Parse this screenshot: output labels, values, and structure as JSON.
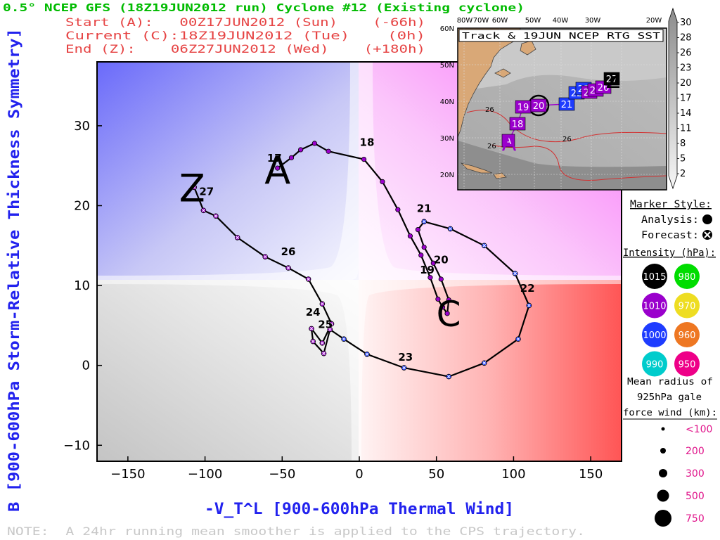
{
  "header": {
    "title": "0.5° NCEP GFS (18Z19JUN2012 run) Cyclone #12 (Existing cyclone)",
    "start_line": "Start (A):   00Z17JUN2012 (Sun)    (-66h)",
    "current_line": "Current (C):18Z19JUN2012 (Tue)    (0h)",
    "end_line": "End (Z):    06Z27JUN2012 (Wed)    (+180h)"
  },
  "footer": {
    "note": "NOTE:  A 24hr running mean smoother is applied to the CPS trajectory."
  },
  "inset": {
    "title": "Track & 19JUN NCEP RTG SST",
    "lon_labels": [
      "80W",
      "70W",
      "60W",
      "50W",
      "40W",
      "30W",
      "20W"
    ],
    "lat_labels": [
      "60N",
      "50N",
      "40N",
      "30N",
      "20N"
    ],
    "sst_contour_labels": [
      "26",
      "26",
      "26"
    ],
    "colorbar_labels": [
      "30",
      "28",
      "26",
      "23",
      "20",
      "17",
      "14",
      "11",
      "8",
      "5",
      "2"
    ],
    "track_markers": [
      {
        "label": "A",
        "color": "#9a00cc"
      },
      {
        "label": "18",
        "color": "#9a00cc"
      },
      {
        "label": "19",
        "color": "#9a00cc"
      },
      {
        "label": "20",
        "color": "#9a00cc"
      },
      {
        "label": "21",
        "color": "#1e3cff"
      },
      {
        "label": "22",
        "color": "#1e3cff"
      },
      {
        "label": "23",
        "color": "#1e3cff"
      },
      {
        "label": "24",
        "color": "#9a00cc"
      },
      {
        "label": "25",
        "color": "#9a00cc"
      },
      {
        "label": "26",
        "color": "#9a00cc"
      },
      {
        "label": "27",
        "color": "#000000"
      }
    ]
  },
  "legend": {
    "marker_style_title": "Marker Style:",
    "analysis_label": "Analysis:",
    "forecast_label": "Forecast:",
    "intensity_title": "Intensity (hPa):",
    "intensity_items": [
      {
        "label": "1015",
        "color": "#000000"
      },
      {
        "label": "980",
        "color": "#00dd00"
      },
      {
        "label": "1010",
        "color": "#9a00cc"
      },
      {
        "label": "970",
        "color": "#eedd22"
      },
      {
        "label": "1000",
        "color": "#1e3cff"
      },
      {
        "label": "960",
        "color": "#ee7722"
      },
      {
        "label": "990",
        "color": "#00cccc"
      },
      {
        "label": "950",
        "color": "#ee0088"
      }
    ],
    "radius_title_1": "Mean radius of",
    "radius_title_2": "925hPa gale",
    "radius_title_3": "force wind (km):",
    "radius_items": [
      "<100",
      "200",
      "300",
      "500",
      "750"
    ]
  },
  "chart_data": {
    "type": "scatter",
    "title": "",
    "xlabel": "-V_T^L [900-600hPa Thermal Wind]",
    "ylabel": "B [900-600hPa Storm-Relative Thickness Symmetry]",
    "xlim": [
      -170,
      170
    ],
    "ylim": [
      -12,
      38
    ],
    "x_ticks": [
      -150,
      -100,
      -50,
      0,
      50,
      100,
      150
    ],
    "y_ticks": [
      -10,
      0,
      10,
      20,
      30
    ],
    "x_tick_labels": [
      "−150",
      "−100",
      "−50",
      "0",
      "50",
      "100",
      "150"
    ],
    "y_tick_labels": [
      "−10",
      "0",
      "10",
      "20",
      "30"
    ],
    "start_label": "A",
    "current_label": "C",
    "end_label": "Z",
    "analysis_points": [
      {
        "x": -53,
        "y": 24.7
      },
      {
        "x": -44,
        "y": 26
      },
      {
        "x": -38,
        "y": 27
      },
      {
        "x": -29,
        "y": 27.8
      },
      {
        "x": -20,
        "y": 26.8
      },
      {
        "x": 3,
        "y": 25.8
      },
      {
        "x": 15,
        "y": 23
      },
      {
        "x": 25,
        "y": 19.5
      },
      {
        "x": 33,
        "y": 16.2
      },
      {
        "x": 40,
        "y": 13.8
      },
      {
        "x": 46,
        "y": 11
      },
      {
        "x": 51,
        "y": 8.3
      },
      {
        "x": 54,
        "y": 7.3
      },
      {
        "x": 57,
        "y": 6.5
      },
      {
        "x": 58,
        "y": 8.2
      },
      {
        "x": 53,
        "y": 10.8
      },
      {
        "x": 48,
        "y": 12.8
      },
      {
        "x": 42,
        "y": 14.8
      },
      {
        "x": 38,
        "y": 17
      }
    ],
    "forecast_points": [
      {
        "x": 42,
        "y": 18
      },
      {
        "x": 59,
        "y": 17.1
      },
      {
        "x": 81,
        "y": 15
      },
      {
        "x": 101,
        "y": 11.5
      },
      {
        "x": 110,
        "y": 7.5
      },
      {
        "x": 103,
        "y": 3.3
      },
      {
        "x": 81,
        "y": 0.3
      },
      {
        "x": 58,
        "y": -1.4
      },
      {
        "x": 29,
        "y": -0.3
      },
      {
        "x": 5,
        "y": 1.4
      },
      {
        "x": -10,
        "y": 3.3
      },
      {
        "x": -19,
        "y": 4.5
      },
      {
        "x": -23,
        "y": 1.5
      },
      {
        "x": -30,
        "y": 3
      },
      {
        "x": -31,
        "y": 4.6
      },
      {
        "x": -24,
        "y": 2.8
      },
      {
        "x": -18,
        "y": 5.2
      },
      {
        "x": -24,
        "y": 7.7
      },
      {
        "x": -33,
        "y": 10.8
      },
      {
        "x": -46,
        "y": 12.2
      },
      {
        "x": -61,
        "y": 13.6
      },
      {
        "x": -79,
        "y": 16
      },
      {
        "x": -93,
        "y": 18.7
      },
      {
        "x": -101,
        "y": 19.4
      },
      {
        "x": -107,
        "y": 22.3
      }
    ],
    "date_labels": [
      {
        "label": "17",
        "x": -55,
        "y": 25.5
      },
      {
        "label": "18",
        "x": 5,
        "y": 27.5
      },
      {
        "label": "19",
        "x": 44,
        "y": 11.5
      },
      {
        "label": "20",
        "x": 53,
        "y": 12.8
      },
      {
        "label": "21",
        "x": 42,
        "y": 19.2
      },
      {
        "label": "22",
        "x": 109,
        "y": 9.2
      },
      {
        "label": "23",
        "x": 30,
        "y": 0.6
      },
      {
        "label": "24",
        "x": -30,
        "y": 6.2
      },
      {
        "label": "25",
        "x": -22,
        "y": 4.7
      },
      {
        "label": "26",
        "x": -46,
        "y": 13.8
      },
      {
        "label": "27",
        "x": -99,
        "y": 21.3
      }
    ]
  }
}
